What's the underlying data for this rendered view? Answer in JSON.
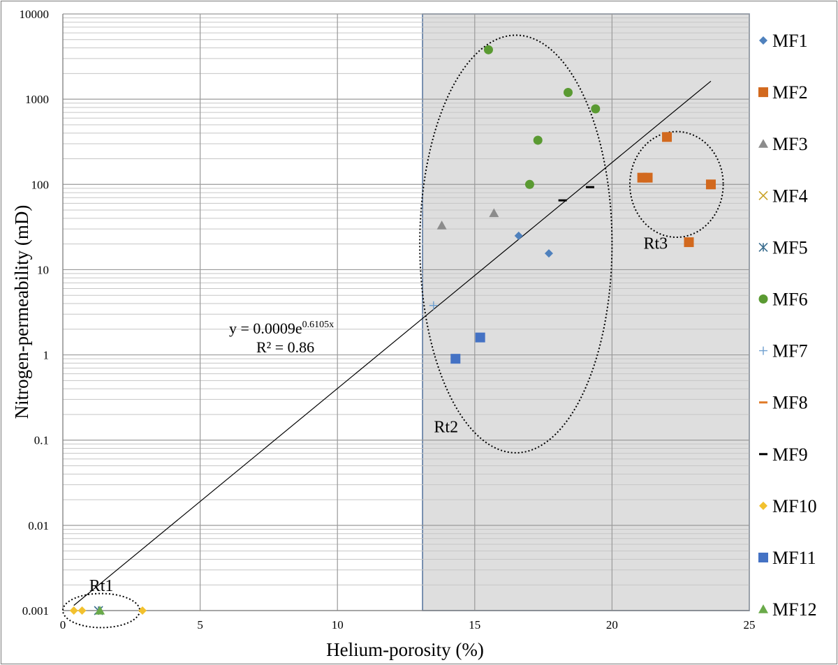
{
  "chart_data": {
    "type": "scatter",
    "xlabel": "Helium-porosity (%)",
    "ylabel": "Nitrogen-permeability (mD)",
    "xlim": [
      0,
      25
    ],
    "ylim": [
      0.001,
      10000
    ],
    "y_scale": "log",
    "grid": true,
    "legend_position": "right",
    "x_ticks": [
      "0",
      "5",
      "10",
      "15",
      "20",
      "25"
    ],
    "y_ticks": [
      "0.001",
      "0.01",
      "0.1",
      "1",
      "10",
      "100",
      "1000",
      "10000"
    ],
    "highlight_region": {
      "x_from": 13.1,
      "x_to": 25,
      "color": "#dedede"
    },
    "trendline": {
      "equation_main": "y = 0.0009e",
      "equation_exponent": "0.6105x",
      "r_squared": "R² = 0.86",
      "a": 0.0009,
      "b": 0.6105,
      "x_range": [
        0.4,
        23.6
      ]
    },
    "groups": [
      {
        "label": "Rt1",
        "center": [
          1.4,
          0.001
        ],
        "radii": [
          1.4,
          0.2
        ]
      },
      {
        "label": "Rt2",
        "center": [
          16.5,
          20
        ],
        "radii": [
          3.5,
          2.45
        ]
      },
      {
        "label": "Rt3",
        "center": [
          22.35,
          100
        ],
        "radii": [
          1.7,
          0.62
        ]
      }
    ],
    "series": [
      {
        "name": "MF1",
        "marker": "diamond",
        "color": "#4f81bd",
        "points": [
          [
            16.6,
            25
          ],
          [
            17.7,
            15.5
          ]
        ]
      },
      {
        "name": "MF2",
        "marker": "square",
        "color": "#d2691e",
        "points": [
          [
            21.1,
            120
          ],
          [
            21.3,
            120
          ],
          [
            22.0,
            360
          ],
          [
            23.6,
            100
          ],
          [
            22.8,
            21
          ]
        ]
      },
      {
        "name": "MF3",
        "marker": "triangle",
        "color": "#8c8c8c",
        "points": [
          [
            13.8,
            33
          ],
          [
            15.7,
            46
          ]
        ]
      },
      {
        "name": "MF4",
        "marker": "x",
        "color": "#c9a227",
        "points": []
      },
      {
        "name": "MF5",
        "marker": "star",
        "color": "#3b6e8f",
        "points": [
          [
            1.3,
            0.001
          ]
        ]
      },
      {
        "name": "MF6",
        "marker": "circle",
        "color": "#5a9a32",
        "points": [
          [
            15.5,
            3800
          ],
          [
            18.4,
            1200
          ],
          [
            19.4,
            770
          ],
          [
            17.3,
            330
          ],
          [
            17.0,
            100
          ]
        ]
      },
      {
        "name": "MF7",
        "marker": "plus",
        "color": "#6fa0d0",
        "points": [
          [
            13.5,
            3.8
          ]
        ]
      },
      {
        "name": "MF8",
        "marker": "dash",
        "color": "#e07b2a",
        "points": []
      },
      {
        "name": "MF9",
        "marker": "dash",
        "color": "#000000",
        "points": [
          [
            18.2,
            65
          ],
          [
            19.2,
            93
          ]
        ]
      },
      {
        "name": "MF10",
        "marker": "diamond",
        "color": "#f2c12e",
        "points": [
          [
            0.4,
            0.001
          ],
          [
            0.7,
            0.001
          ],
          [
            2.9,
            0.001
          ]
        ]
      },
      {
        "name": "MF11",
        "marker": "square",
        "color": "#4472c4",
        "points": [
          [
            14.3,
            0.9
          ],
          [
            15.2,
            1.6
          ]
        ]
      },
      {
        "name": "MF12",
        "marker": "triangle",
        "color": "#6aaa4a",
        "points": [
          [
            1.35,
            0.001
          ]
        ]
      }
    ]
  }
}
